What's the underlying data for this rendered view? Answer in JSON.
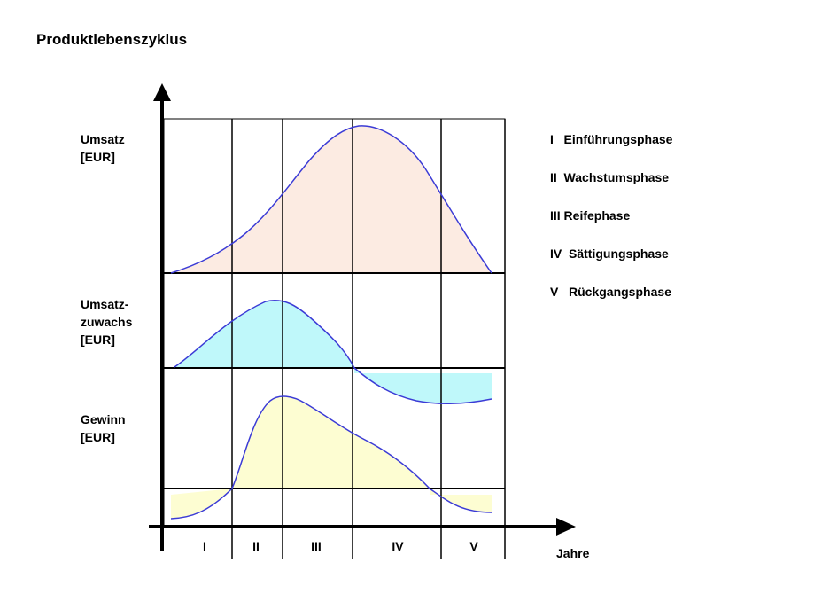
{
  "title": "Produktlebenszyklus",
  "rows": [
    {
      "label_lines": [
        "Umsatz",
        "[EUR]"
      ],
      "fill": "#fcebe2"
    },
    {
      "label_lines": [
        "Umsatz-",
        "zuwachs",
        "[EUR]"
      ],
      "fill": "#bff8fa"
    },
    {
      "label_lines": [
        "Gewinn",
        "[EUR]"
      ],
      "fill": "#fdfdd2"
    }
  ],
  "curve_color": "#3b3bd6",
  "phases": [
    "I",
    "II",
    "III",
    "IV",
    "V"
  ],
  "x_axis_label": "Jahre",
  "legend": [
    "I   Einführungsphase",
    "II  Wachstumsphase",
    "III Reifephase",
    "IV  Sättigungsphase",
    "V   Rückgangsphase"
  ]
}
